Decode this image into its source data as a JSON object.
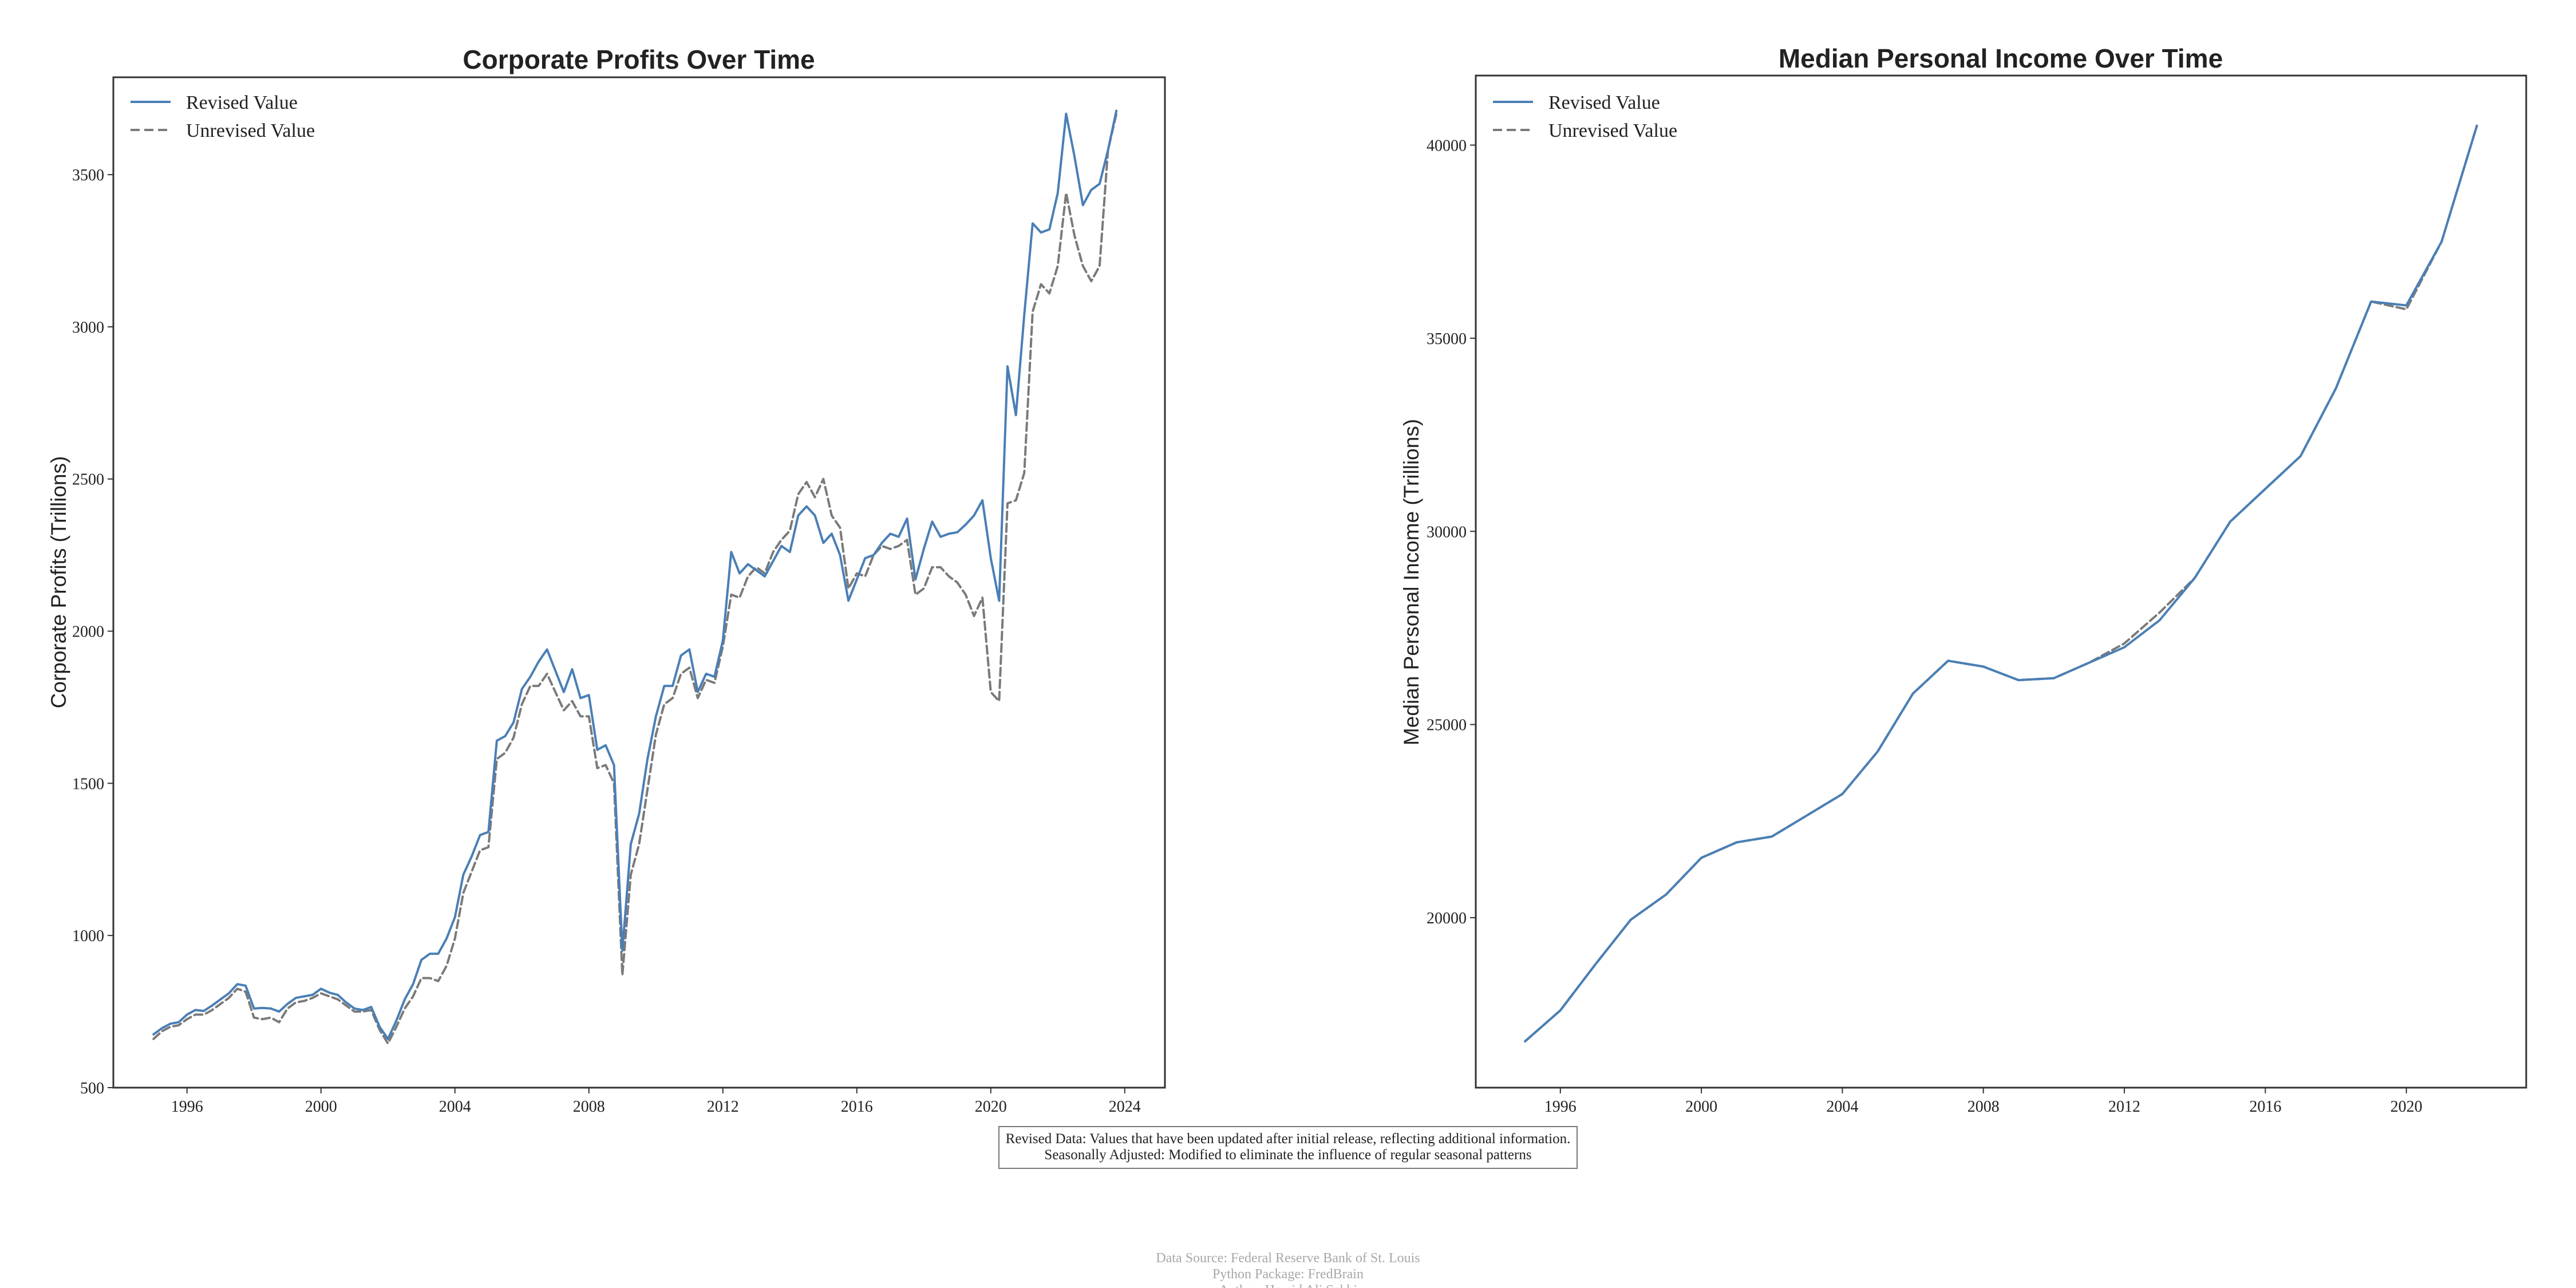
{
  "chart_data": [
    {
      "type": "line",
      "title": "Corporate Profits Over Time",
      "ylabel": "Corporate Profits (Trillions)",
      "xlabel": "",
      "xlim": [
        1993.8,
        2025.2
      ],
      "ylim": [
        500,
        3820
      ],
      "xticks": [
        1996,
        2000,
        2004,
        2008,
        2012,
        2016,
        2020,
        2024
      ],
      "yticks": [
        500,
        1000,
        1500,
        2000,
        2500,
        3000,
        3500
      ],
      "grid": false,
      "legend": "top-left",
      "series": [
        {
          "name": "Revised Value",
          "color": "#4a7fb5",
          "style": "solid",
          "x": [
            1995.0,
            1995.25,
            1995.5,
            1995.75,
            1996.0,
            1996.25,
            1996.5,
            1996.75,
            1997.0,
            1997.25,
            1997.5,
            1997.75,
            1998.0,
            1998.25,
            1998.5,
            1998.75,
            1999.0,
            1999.25,
            1999.5,
            1999.75,
            2000.0,
            2000.25,
            2000.5,
            2000.75,
            2001.0,
            2001.25,
            2001.5,
            2001.75,
            2002.0,
            2002.25,
            2002.5,
            2002.75,
            2003.0,
            2003.25,
            2003.5,
            2003.75,
            2004.0,
            2004.25,
            2004.5,
            2004.75,
            2005.0,
            2005.25,
            2005.5,
            2005.75,
            2006.0,
            2006.25,
            2006.5,
            2006.75,
            2007.0,
            2007.25,
            2007.5,
            2007.75,
            2008.0,
            2008.25,
            2008.5,
            2008.75,
            2009.0,
            2009.25,
            2009.5,
            2009.75,
            2010.0,
            2010.25,
            2010.5,
            2010.75,
            2011.0,
            2011.25,
            2011.5,
            2011.75,
            2012.0,
            2012.25,
            2012.5,
            2012.75,
            2013.0,
            2013.25,
            2013.5,
            2013.75,
            2014.0,
            2014.25,
            2014.5,
            2014.75,
            2015.0,
            2015.25,
            2015.5,
            2015.75,
            2016.0,
            2016.25,
            2016.5,
            2016.75,
            2017.0,
            2017.25,
            2017.5,
            2017.75,
            2018.0,
            2018.25,
            2018.5,
            2018.75,
            2019.0,
            2019.25,
            2019.5,
            2019.75,
            2020.0,
            2020.25,
            2020.5,
            2020.75,
            2021.0,
            2021.25,
            2021.5,
            2021.75,
            2022.0,
            2022.25,
            2022.5,
            2022.75,
            2023.0,
            2023.25,
            2023.5,
            2023.75
          ],
          "y": [
            675,
            695,
            710,
            715,
            740,
            755,
            752,
            770,
            790,
            810,
            840,
            835,
            760,
            762,
            760,
            750,
            775,
            795,
            800,
            805,
            825,
            812,
            805,
            780,
            760,
            755,
            765,
            700,
            660,
            720,
            790,
            840,
            920,
            940,
            940,
            990,
            1060,
            1200,
            1260,
            1330,
            1340,
            1640,
            1655,
            1700,
            1810,
            1850,
            1900,
            1940,
            1870,
            1800,
            1875,
            1780,
            1790,
            1610,
            1625,
            1560,
            950,
            1300,
            1400,
            1580,
            1720,
            1820,
            1820,
            1920,
            1940,
            1800,
            1860,
            1850,
            1970,
            2260,
            2190,
            2220,
            2200,
            2180,
            2230,
            2280,
            2260,
            2380,
            2410,
            2380,
            2290,
            2320,
            2250,
            2100,
            2170,
            2240,
            2250,
            2290,
            2320,
            2310,
            2370,
            2170,
            2270,
            2360,
            2310,
            2320,
            2325,
            2350,
            2380,
            2430,
            2240,
            2100,
            2870,
            2710,
            3040,
            3340,
            3310,
            3320,
            3440,
            3700,
            3560,
            3400,
            3450,
            3470,
            3580,
            3710
          ]
        },
        {
          "name": "Unrevised Value",
          "color": "#7a7a7a",
          "style": "dashed",
          "x": [
            1995.0,
            1995.25,
            1995.5,
            1995.75,
            1996.0,
            1996.25,
            1996.5,
            1996.75,
            1997.0,
            1997.25,
            1997.5,
            1997.75,
            1998.0,
            1998.25,
            1998.5,
            1998.75,
            1999.0,
            1999.25,
            1999.5,
            1999.75,
            2000.0,
            2000.25,
            2000.5,
            2000.75,
            2001.0,
            2001.25,
            2001.5,
            2001.75,
            2002.0,
            2002.25,
            2002.5,
            2002.75,
            2003.0,
            2003.25,
            2003.5,
            2003.75,
            2004.0,
            2004.25,
            2004.5,
            2004.75,
            2005.0,
            2005.25,
            2005.5,
            2005.75,
            2006.0,
            2006.25,
            2006.5,
            2006.75,
            2007.0,
            2007.25,
            2007.5,
            2007.75,
            2008.0,
            2008.25,
            2008.5,
            2008.75,
            2009.0,
            2009.25,
            2009.5,
            2009.75,
            2010.0,
            2010.25,
            2010.5,
            2010.75,
            2011.0,
            2011.25,
            2011.5,
            2011.75,
            2012.0,
            2012.25,
            2012.5,
            2012.75,
            2013.0,
            2013.25,
            2013.5,
            2013.75,
            2014.0,
            2014.25,
            2014.5,
            2014.75,
            2015.0,
            2015.25,
            2015.5,
            2015.75,
            2016.0,
            2016.25,
            2016.5,
            2016.75,
            2017.0,
            2017.25,
            2017.5,
            2017.75,
            2018.0,
            2018.25,
            2018.5,
            2018.75,
            2019.0,
            2019.25,
            2019.5,
            2019.75,
            2020.0,
            2020.25,
            2020.5,
            2020.75,
            2021.0,
            2021.25,
            2021.5,
            2021.75,
            2022.0,
            2022.25,
            2022.5,
            2022.75,
            2023.0,
            2023.25,
            2023.5,
            2023.75
          ],
          "y": [
            660,
            685,
            700,
            705,
            725,
            740,
            740,
            755,
            775,
            795,
            825,
            815,
            730,
            725,
            730,
            715,
            760,
            780,
            785,
            795,
            810,
            800,
            790,
            770,
            750,
            750,
            755,
            690,
            645,
            700,
            760,
            800,
            860,
            860,
            850,
            900,
            990,
            1140,
            1210,
            1280,
            1290,
            1580,
            1600,
            1650,
            1760,
            1820,
            1820,
            1860,
            1800,
            1740,
            1770,
            1720,
            1720,
            1550,
            1560,
            1500,
            870,
            1200,
            1300,
            1480,
            1660,
            1760,
            1780,
            1860,
            1880,
            1780,
            1840,
            1830,
            1950,
            2120,
            2110,
            2180,
            2210,
            2190,
            2260,
            2300,
            2330,
            2450,
            2490,
            2440,
            2500,
            2380,
            2340,
            2140,
            2190,
            2180,
            2250,
            2280,
            2270,
            2280,
            2300,
            2120,
            2140,
            2210,
            2210,
            2180,
            2160,
            2120,
            2050,
            2110,
            1800,
            1770,
            2420,
            2430,
            2520,
            3050,
            3140,
            3110,
            3200,
            3440,
            3300,
            3200,
            3150,
            3200,
            3580,
            3700
          ]
        }
      ]
    },
    {
      "type": "line",
      "title": "Median Personal Income Over Time",
      "ylabel": "Median Personal Income (Trillions)",
      "xlabel": "",
      "xlim": [
        1993.6,
        2023.4
      ],
      "ylim": [
        15600,
        41800
      ],
      "xticks": [
        1996,
        2000,
        2004,
        2008,
        2012,
        2016,
        2020
      ],
      "yticks": [
        20000,
        25000,
        30000,
        35000,
        40000
      ],
      "grid": false,
      "legend": "top-left",
      "series": [
        {
          "name": "Revised Value",
          "color": "#4a7fb5",
          "style": "solid",
          "x": [
            1995,
            1996,
            1997,
            1998,
            1999,
            2000,
            2001,
            2002,
            2003,
            2004,
            2005,
            2006,
            2007,
            2008,
            2009,
            2010,
            2011,
            2012,
            2013,
            2014,
            2015,
            2016,
            2017,
            2018,
            2019,
            2020,
            2021,
            2022
          ],
          "y": [
            16800,
            17600,
            18800,
            19950,
            20600,
            21550,
            21950,
            22100,
            22650,
            23200,
            24300,
            25800,
            26650,
            26500,
            26150,
            26200,
            26600,
            27000,
            27700,
            28800,
            30250,
            31100,
            31950,
            33700,
            35950,
            35850,
            37500,
            40500
          ]
        },
        {
          "name": "Unrevised Value",
          "color": "#7a7a7a",
          "style": "dashed",
          "x": [
            1995,
            1996,
            1997,
            1998,
            1999,
            2000,
            2001,
            2002,
            2003,
            2004,
            2005,
            2006,
            2007,
            2008,
            2009,
            2010,
            2011,
            2012,
            2013,
            2014,
            2015,
            2016,
            2017,
            2018,
            2019,
            2020,
            2021,
            2022
          ],
          "y": [
            16800,
            17600,
            18800,
            19950,
            20600,
            21550,
            21950,
            22100,
            22650,
            23200,
            24300,
            25800,
            26650,
            26500,
            26150,
            26200,
            26600,
            27100,
            27900,
            28800,
            30250,
            31100,
            31950,
            33700,
            35950,
            35750,
            37500,
            40500
          ]
        }
      ]
    }
  ],
  "notes": [
    "Revised Data: Values that have been updated after initial release, reflecting additional information.",
    "Seasonally Adjusted: Modified to eliminate the influence of regular seasonal patterns"
  ],
  "footer": [
    "Data Source: Federal Reserve Bank of St. Louis",
    "Python Package: FredBrain",
    "Author: Hamid Ali Sakhi"
  ]
}
